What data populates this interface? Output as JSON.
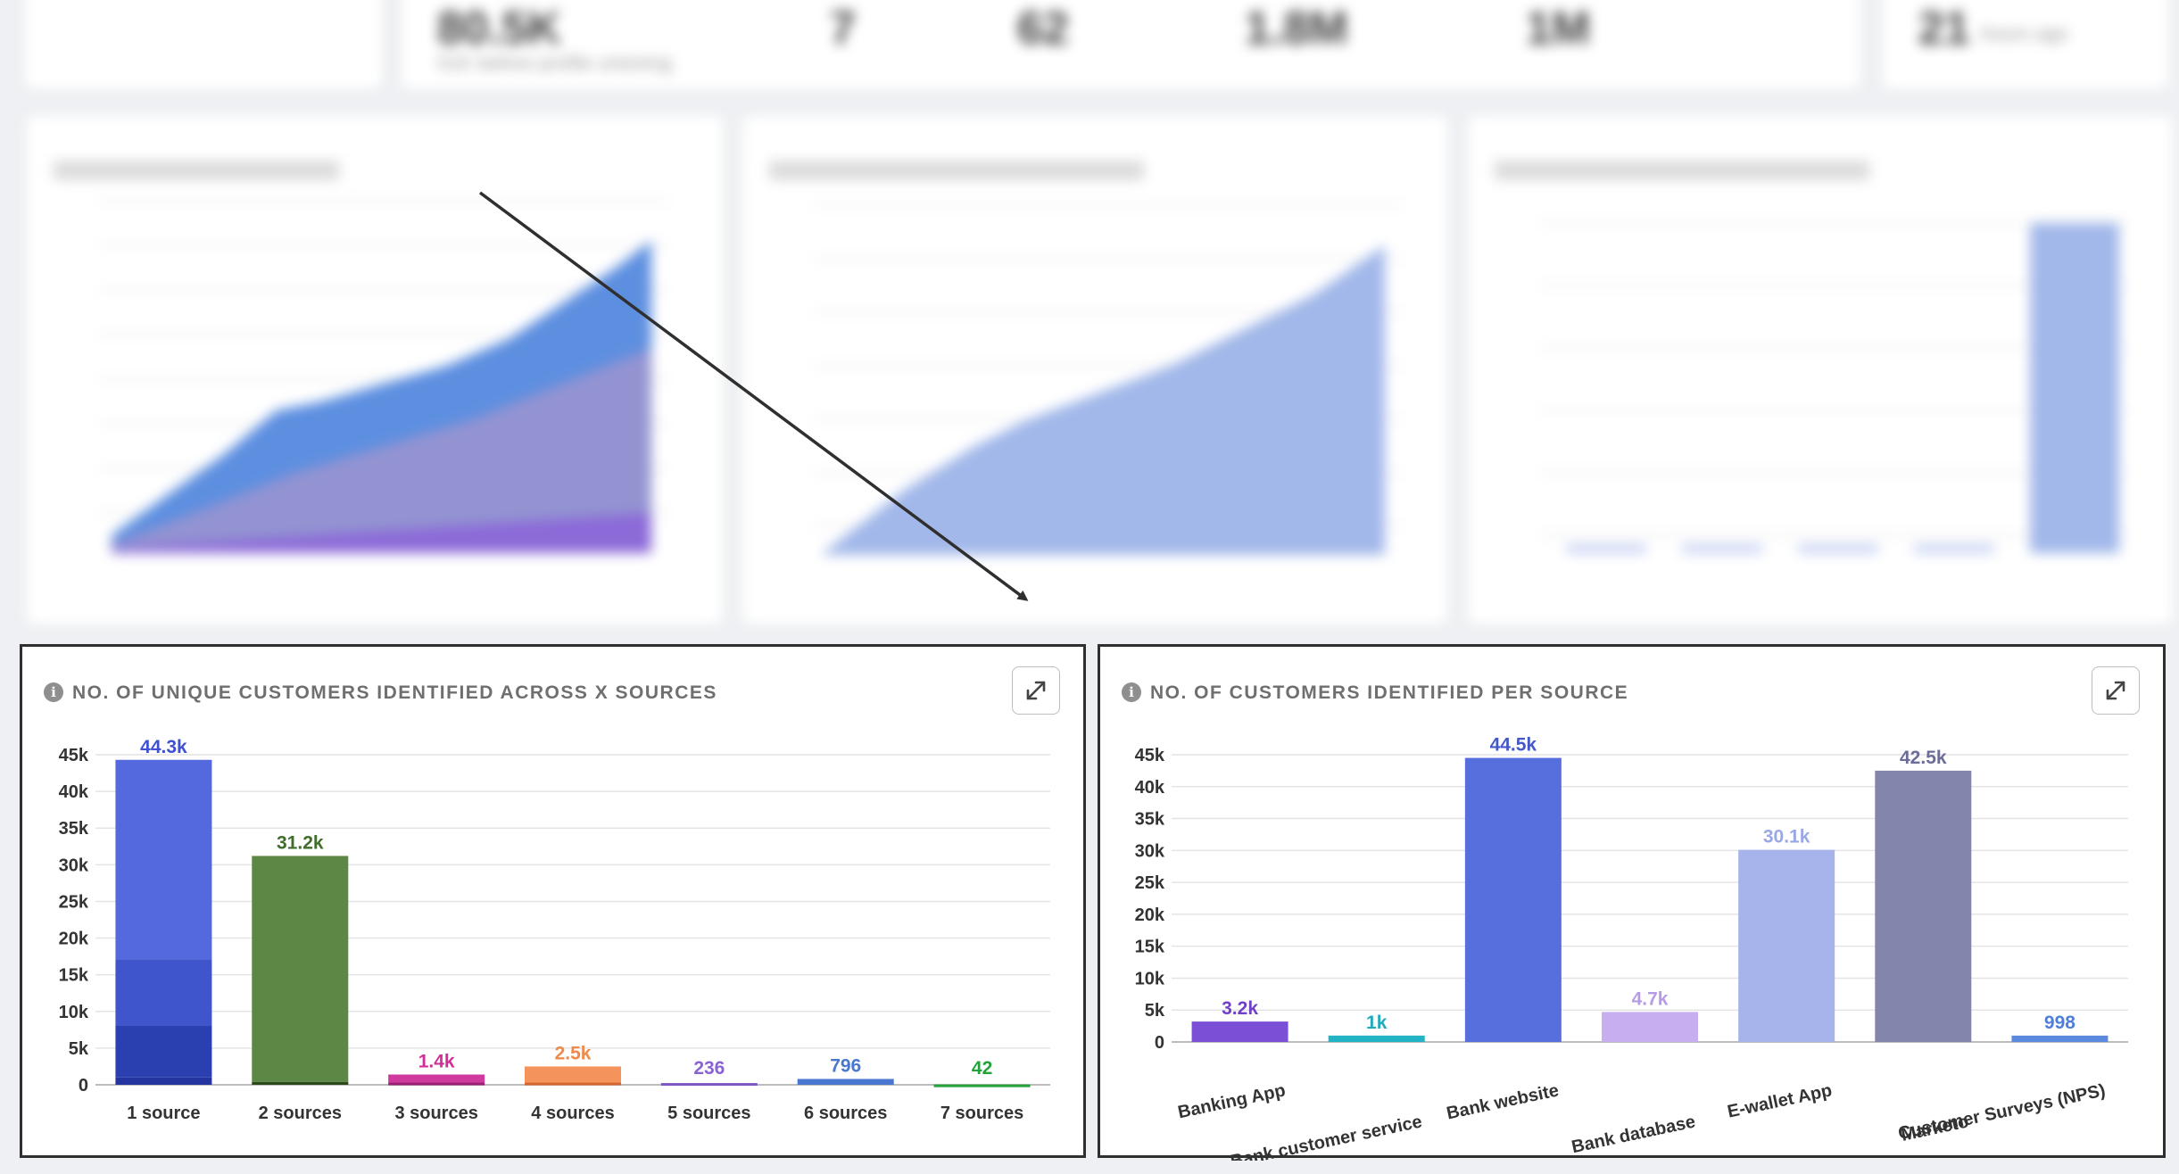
{
  "top_row_kpis": [
    {
      "value": "80.5K",
      "sub": "51K before profile unioning"
    },
    {
      "value": "7",
      "sub": ""
    },
    {
      "value": "62",
      "sub": ""
    },
    {
      "value": "1.8M",
      "sub": ""
    },
    {
      "value": "1M",
      "sub": ""
    },
    {
      "value": "21",
      "sub": "hours ago"
    }
  ],
  "colors": {
    "panel_border": "#2f2f2f",
    "grid": "#e4e4e4",
    "axis_text": "#333333",
    "title_text": "#6f6f6f"
  },
  "left_panel": {
    "title": "No. of unique customers identified across X sources",
    "expand_icon": "expand-icon",
    "info_icon": "info-icon"
  },
  "right_panel": {
    "title": "No. of customers identified per source",
    "expand_icon": "expand-icon",
    "info_icon": "info-icon"
  },
  "chart_data": [
    {
      "type": "bar",
      "stacked": true,
      "categories": [
        "1 source",
        "2 sources",
        "3 sources",
        "4 sources",
        "5 sources",
        "6 sources",
        "7 sources"
      ],
      "values": [
        44300,
        31200,
        1400,
        2500,
        236,
        796,
        42
      ],
      "data_labels": [
        "44.3k",
        "31.2k",
        "1.4k",
        "2.5k",
        "236",
        "796",
        "42"
      ],
      "label_colors": [
        "#3f51d1",
        "#3f6e2a",
        "#d12f98",
        "#f08a4b",
        "#8a63d2",
        "#4a78d0",
        "#22a33a"
      ],
      "stacks": [
        [
          {
            "value": 1000,
            "color": "#2535a0"
          },
          {
            "value": 7100,
            "color": "#2a3fb0"
          },
          {
            "value": 9000,
            "color": "#3f55cc"
          },
          {
            "value": 27200,
            "color": "#5369dd"
          }
        ],
        [
          {
            "value": 400,
            "color": "#2b4a1c"
          },
          {
            "value": 30800,
            "color": "#5c8745"
          }
        ],
        [
          {
            "value": 300,
            "color": "#9c1f74"
          },
          {
            "value": 1100,
            "color": "#d03a9f"
          }
        ],
        [
          {
            "value": 300,
            "color": "#d5652c"
          },
          {
            "value": 2200,
            "color": "#f5935c"
          }
        ],
        [
          {
            "value": 236,
            "color": "#7d57c4"
          }
        ],
        [
          {
            "value": 796,
            "color": "#4a78d0"
          }
        ],
        [
          {
            "value": 42,
            "color": "#22a33a"
          }
        ]
      ],
      "yticks": [
        "0",
        "5k",
        "10k",
        "15k",
        "20k",
        "25k",
        "30k",
        "35k",
        "40k",
        "45k"
      ],
      "ylim": [
        0,
        45000
      ],
      "grid": true,
      "legend": "none"
    },
    {
      "type": "bar",
      "categories": [
        "Banking App",
        "Bank customer service",
        "Bank website",
        "Bank database",
        "E-wallet App",
        "Marketo",
        "Customer Surveys (NPS)"
      ],
      "values": [
        3200,
        1000,
        44500,
        4700,
        30100,
        42500,
        998
      ],
      "data_labels": [
        "3.2k",
        "1k",
        "44.5k",
        "4.7k",
        "30.1k",
        "42.5k",
        "998"
      ],
      "colors": [
        "#7b4fd6",
        "#22b3c4",
        "#566fdc",
        "#c6aef0",
        "#a7b4ec",
        "#8385ad",
        "#5b89e0"
      ],
      "label_colors": [
        "#7040c8",
        "#20aabb",
        "#4458c8",
        "#b69be6",
        "#9aa9e6",
        "#6b6d98",
        "#4f7fd8"
      ],
      "yticks": [
        "0",
        "5k",
        "10k",
        "15k",
        "20k",
        "25k",
        "30k",
        "35k",
        "40k",
        "45k"
      ],
      "ylim": [
        0,
        45000
      ],
      "grid": true,
      "legend": "none"
    }
  ]
}
